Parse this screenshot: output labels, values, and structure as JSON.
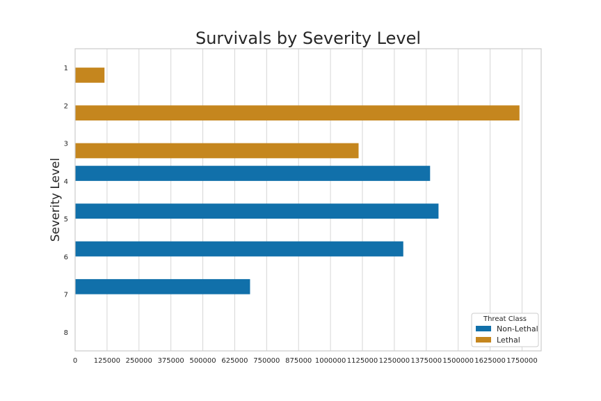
{
  "chart_data": {
    "type": "bar",
    "orientation": "horizontal",
    "title": "Survivals by Severity Level",
    "xlabel": "",
    "ylabel": "Severity Level",
    "categories": [
      "1",
      "2",
      "3",
      "4",
      "5",
      "6",
      "7",
      "8"
    ],
    "xlim": [
      0,
      1825000
    ],
    "xticks": [
      0,
      125000,
      250000,
      375000,
      500000,
      625000,
      750000,
      875000,
      1000000,
      1125000,
      1250000,
      1375000,
      1500000,
      1625000,
      1750000
    ],
    "grid": true,
    "legend": {
      "title": "Threat Class",
      "placement": "lower-right"
    },
    "series": [
      {
        "name": "Non-Lethal",
        "color": "#1170aa",
        "values": [
          null,
          null,
          null,
          1390000,
          1423000,
          1285000,
          685000,
          null
        ]
      },
      {
        "name": "Lethal",
        "color": "#c5861e",
        "values": [
          115000,
          1740000,
          1110000,
          null,
          null,
          null,
          null,
          null
        ]
      }
    ]
  }
}
